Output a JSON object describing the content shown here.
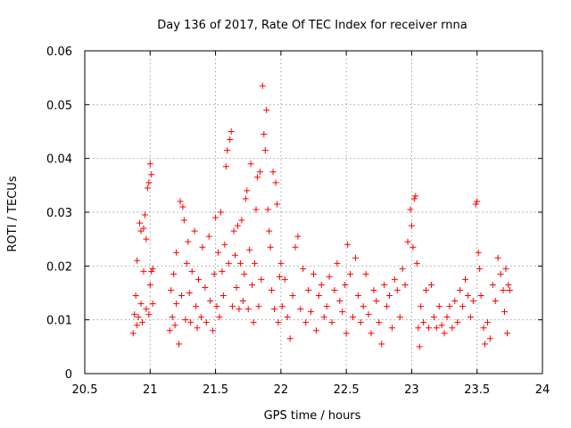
{
  "chart_data": {
    "type": "scatter",
    "title": "Day 136 of 2017, Rate Of TEC Index for receiver rnna",
    "xlabel": "GPS time / hours",
    "ylabel": "ROTI / TECUs",
    "xlim": [
      20.5,
      24
    ],
    "ylim": [
      0,
      0.06
    ],
    "grid": true,
    "marker": "+",
    "marker_color": "#ff0000",
    "x_ticks": [
      20.5,
      21,
      21.5,
      22,
      22.5,
      23,
      23.5,
      24
    ],
    "x_tick_labels": [
      "20.5",
      "21",
      "21.5",
      "22",
      "22.5",
      "23",
      "23.5",
      "24"
    ],
    "y_ticks": [
      0,
      0.01,
      0.02,
      0.03,
      0.04,
      0.05,
      0.06
    ],
    "y_tick_labels": [
      "0",
      "0.01",
      "0.02",
      "0.03",
      "0.04",
      "0.05",
      "0.06"
    ],
    "series": [
      {
        "name": "ROTI",
        "points": [
          [
            20.87,
            0.0075
          ],
          [
            20.88,
            0.011
          ],
          [
            20.89,
            0.0145
          ],
          [
            20.9,
            0.009
          ],
          [
            20.9,
            0.021
          ],
          [
            20.91,
            0.0105
          ],
          [
            20.92,
            0.028
          ],
          [
            20.93,
            0.0265
          ],
          [
            20.93,
            0.013
          ],
          [
            20.94,
            0.0095
          ],
          [
            20.95,
            0.027
          ],
          [
            20.95,
            0.019
          ],
          [
            20.96,
            0.0295
          ],
          [
            20.97,
            0.025
          ],
          [
            20.97,
            0.012
          ],
          [
            20.98,
            0.0345
          ],
          [
            20.99,
            0.0355
          ],
          [
            21.0,
            0.039
          ],
          [
            21.01,
            0.037
          ],
          [
            21.0,
            0.0165
          ],
          [
            21.01,
            0.019
          ],
          [
            21.02,
            0.013
          ],
          [
            21.02,
            0.0195
          ],
          [
            20.99,
            0.011
          ],
          [
            21.15,
            0.008
          ],
          [
            21.16,
            0.0155
          ],
          [
            21.17,
            0.0105
          ],
          [
            21.18,
            0.0185
          ],
          [
            21.19,
            0.009
          ],
          [
            21.2,
            0.0225
          ],
          [
            21.2,
            0.013
          ],
          [
            21.22,
            0.0055
          ],
          [
            21.23,
            0.032
          ],
          [
            21.24,
            0.0145
          ],
          [
            21.25,
            0.031
          ],
          [
            21.26,
            0.0285
          ],
          [
            21.27,
            0.01
          ],
          [
            21.28,
            0.0205
          ],
          [
            21.29,
            0.0245
          ],
          [
            21.3,
            0.015
          ],
          [
            21.31,
            0.0095
          ],
          [
            21.32,
            0.019
          ],
          [
            21.34,
            0.0265
          ],
          [
            21.35,
            0.0125
          ],
          [
            21.36,
            0.0085
          ],
          [
            21.37,
            0.0175
          ],
          [
            21.39,
            0.0105
          ],
          [
            21.4,
            0.0235
          ],
          [
            21.42,
            0.016
          ],
          [
            21.43,
            0.0095
          ],
          [
            21.45,
            0.0255
          ],
          [
            21.46,
            0.0135
          ],
          [
            21.48,
            0.008
          ],
          [
            21.49,
            0.0185
          ],
          [
            21.5,
            0.029
          ],
          [
            21.51,
            0.0125
          ],
          [
            21.52,
            0.0225
          ],
          [
            21.53,
            0.0105
          ],
          [
            21.54,
            0.03
          ],
          [
            21.55,
            0.019
          ],
          [
            21.56,
            0.0145
          ],
          [
            21.57,
            0.024
          ],
          [
            21.58,
            0.0385
          ],
          [
            21.59,
            0.0415
          ],
          [
            21.6,
            0.0205
          ],
          [
            21.61,
            0.0435
          ],
          [
            21.62,
            0.045
          ],
          [
            21.63,
            0.0125
          ],
          [
            21.64,
            0.0265
          ],
          [
            21.65,
            0.022
          ],
          [
            21.66,
            0.016
          ],
          [
            21.67,
            0.0275
          ],
          [
            21.68,
            0.012
          ],
          [
            21.69,
            0.0205
          ],
          [
            21.7,
            0.0285
          ],
          [
            21.71,
            0.0135
          ],
          [
            21.72,
            0.0185
          ],
          [
            21.73,
            0.0325
          ],
          [
            21.74,
            0.034
          ],
          [
            21.75,
            0.012
          ],
          [
            21.76,
            0.023
          ],
          [
            21.77,
            0.039
          ],
          [
            21.78,
            0.0165
          ],
          [
            21.79,
            0.0095
          ],
          [
            21.8,
            0.0205
          ],
          [
            21.81,
            0.0305
          ],
          [
            21.82,
            0.0365
          ],
          [
            21.83,
            0.0125
          ],
          [
            21.84,
            0.0375
          ],
          [
            21.85,
            0.0175
          ],
          [
            21.86,
            0.0535
          ],
          [
            21.87,
            0.0445
          ],
          [
            21.88,
            0.0415
          ],
          [
            21.89,
            0.049
          ],
          [
            21.9,
            0.0305
          ],
          [
            21.91,
            0.0265
          ],
          [
            21.92,
            0.0235
          ],
          [
            21.93,
            0.0155
          ],
          [
            21.94,
            0.0375
          ],
          [
            21.95,
            0.012
          ],
          [
            21.96,
            0.0355
          ],
          [
            21.97,
            0.0315
          ],
          [
            21.98,
            0.0095
          ],
          [
            21.99,
            0.018
          ],
          [
            22.0,
            0.0205
          ],
          [
            22.01,
            0.0125
          ],
          [
            22.03,
            0.0175
          ],
          [
            22.05,
            0.0105
          ],
          [
            22.07,
            0.0065
          ],
          [
            22.09,
            0.0145
          ],
          [
            22.11,
            0.0235
          ],
          [
            22.13,
            0.0255
          ],
          [
            22.15,
            0.012
          ],
          [
            22.17,
            0.0195
          ],
          [
            22.19,
            0.0095
          ],
          [
            22.21,
            0.0155
          ],
          [
            22.23,
            0.0115
          ],
          [
            22.25,
            0.0185
          ],
          [
            22.27,
            0.008
          ],
          [
            22.29,
            0.0145
          ],
          [
            22.31,
            0.0165
          ],
          [
            22.33,
            0.0105
          ],
          [
            22.35,
            0.0125
          ],
          [
            22.37,
            0.018
          ],
          [
            22.39,
            0.0095
          ],
          [
            22.41,
            0.0155
          ],
          [
            22.43,
            0.0205
          ],
          [
            22.45,
            0.0135
          ],
          [
            22.47,
            0.0115
          ],
          [
            22.49,
            0.0165
          ],
          [
            22.5,
            0.0075
          ],
          [
            22.51,
            0.024
          ],
          [
            22.53,
            0.0185
          ],
          [
            22.55,
            0.0105
          ],
          [
            22.57,
            0.0215
          ],
          [
            22.59,
            0.0145
          ],
          [
            22.61,
            0.0095
          ],
          [
            22.63,
            0.0125
          ],
          [
            22.65,
            0.0185
          ],
          [
            22.67,
            0.011
          ],
          [
            22.69,
            0.0075
          ],
          [
            22.71,
            0.0155
          ],
          [
            22.73,
            0.0135
          ],
          [
            22.75,
            0.0095
          ],
          [
            22.77,
            0.0055
          ],
          [
            22.79,
            0.0165
          ],
          [
            22.81,
            0.0125
          ],
          [
            22.83,
            0.0145
          ],
          [
            22.85,
            0.0085
          ],
          [
            22.87,
            0.0175
          ],
          [
            22.89,
            0.0155
          ],
          [
            22.91,
            0.0105
          ],
          [
            22.93,
            0.0195
          ],
          [
            22.95,
            0.0165
          ],
          [
            22.97,
            0.0245
          ],
          [
            22.99,
            0.0305
          ],
          [
            23.0,
            0.0275
          ],
          [
            23.01,
            0.0235
          ],
          [
            23.02,
            0.0325
          ],
          [
            23.03,
            0.033
          ],
          [
            23.04,
            0.0205
          ],
          [
            23.05,
            0.0085
          ],
          [
            23.06,
            0.005
          ],
          [
            23.07,
            0.0125
          ],
          [
            23.09,
            0.0095
          ],
          [
            23.11,
            0.0155
          ],
          [
            23.13,
            0.0085
          ],
          [
            23.15,
            0.0165
          ],
          [
            23.17,
            0.0105
          ],
          [
            23.19,
            0.0085
          ],
          [
            23.21,
            0.0125
          ],
          [
            23.23,
            0.009
          ],
          [
            23.25,
            0.0075
          ],
          [
            23.27,
            0.0105
          ],
          [
            23.29,
            0.0125
          ],
          [
            23.31,
            0.0085
          ],
          [
            23.33,
            0.0135
          ],
          [
            23.35,
            0.0095
          ],
          [
            23.37,
            0.0155
          ],
          [
            23.39,
            0.0125
          ],
          [
            23.41,
            0.0175
          ],
          [
            23.43,
            0.0145
          ],
          [
            23.45,
            0.0105
          ],
          [
            23.47,
            0.0135
          ],
          [
            23.49,
            0.0315
          ],
          [
            23.5,
            0.032
          ],
          [
            23.51,
            0.0225
          ],
          [
            23.52,
            0.0195
          ],
          [
            23.53,
            0.0145
          ],
          [
            23.55,
            0.0085
          ],
          [
            23.56,
            0.0055
          ],
          [
            23.58,
            0.0095
          ],
          [
            23.6,
            0.0065
          ],
          [
            23.62,
            0.0165
          ],
          [
            23.64,
            0.0135
          ],
          [
            23.66,
            0.0215
          ],
          [
            23.68,
            0.0185
          ],
          [
            23.7,
            0.0155
          ],
          [
            23.71,
            0.0115
          ],
          [
            23.72,
            0.0195
          ],
          [
            23.73,
            0.0075
          ],
          [
            23.74,
            0.0165
          ],
          [
            23.75,
            0.0155
          ]
        ]
      }
    ]
  }
}
